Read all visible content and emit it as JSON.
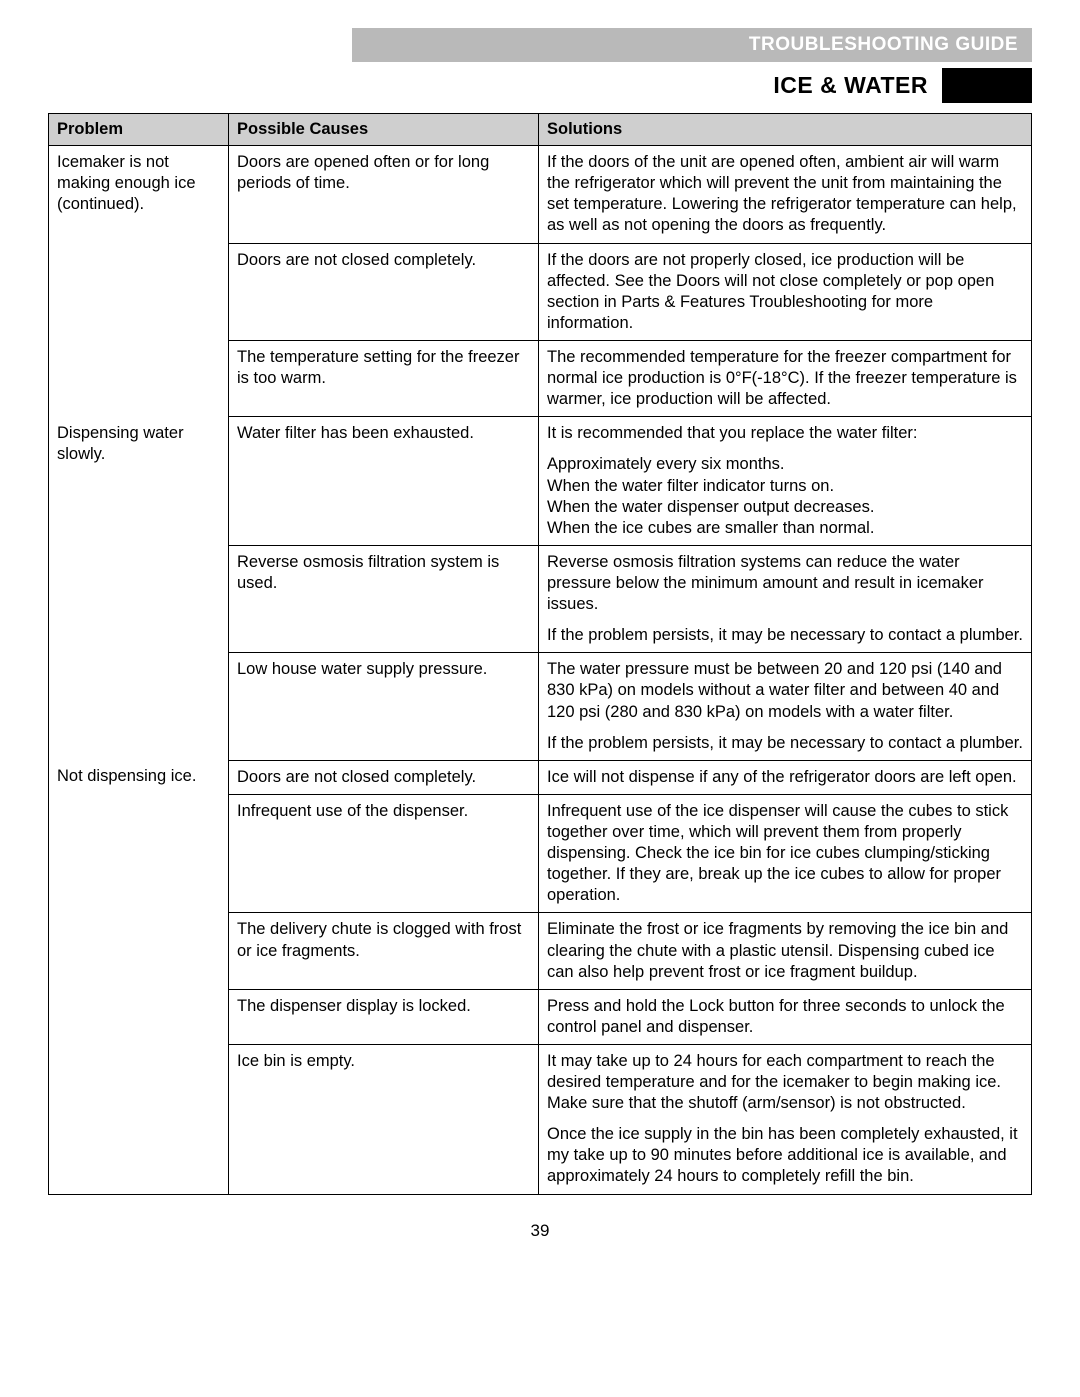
{
  "header": {
    "band": "TROUBLESHOOTING GUIDE",
    "section": "ICE & WATER"
  },
  "columns": {
    "problem": "Problem",
    "causes": "Possible Causes",
    "solutions": "Solutions"
  },
  "groups": [
    {
      "problem": "Icemaker is not making enough ice (continued).",
      "rows": [
        {
          "cause": "Doors are opened often or for long periods of time.",
          "solution": [
            "If the doors of the unit are opened often, ambient air will warm the refrigerator which will prevent the unit from maintaining the set temperature. Lowering the refrigerator temperature can help, as well as not opening the doors as frequently."
          ]
        },
        {
          "cause": "Doors are not closed completely.",
          "solution": [
            "If the doors are not properly closed, ice production will be affected. See the Doors will not close completely or pop open section in Parts & Features Troubleshooting for more information."
          ]
        },
        {
          "cause": "The temperature setting for the freezer is too warm.",
          "solution": [
            "The recommended temperature for the freezer compartment for normal ice production is 0°F(-18°C). If the freezer temperature is warmer, ice production will be affected."
          ]
        }
      ]
    },
    {
      "problem": "Dispensing water slowly.",
      "rows": [
        {
          "cause": "Water filter has been exhausted.",
          "solution": [
            "It is recommended that you replace the water filter:",
            "Approximately every six months.\nWhen the water filter indicator turns on.\nWhen the water dispenser output decreases.\nWhen the ice cubes are smaller than normal."
          ]
        },
        {
          "cause": "Reverse osmosis filtration system is used.",
          "solution": [
            "Reverse osmosis filtration systems can reduce the water pressure below the minimum amount and result in icemaker issues.",
            "If the problem persists, it may be necessary to contact a plumber."
          ]
        },
        {
          "cause": "Low house water supply pressure.",
          "solution": [
            "The water pressure must be between 20 and 120 psi (140 and 830 kPa) on models without a water filter and between 40 and 120 psi (280 and 830 kPa) on models with a water filter.",
            "If the problem persists, it may be necessary to contact a plumber."
          ]
        }
      ]
    },
    {
      "problem": "Not dispensing ice.",
      "rows": [
        {
          "cause": "Doors are not closed completely.",
          "solution": [
            "Ice will not dispense if any of the refrigerator doors are left open."
          ]
        },
        {
          "cause": "Infrequent use of the dispenser.",
          "solution": [
            "Infrequent use of the ice dispenser will cause the cubes to stick together over time, which will prevent them from properly dispensing. Check the ice bin for ice cubes clumping/sticking together. If they are, break up the ice cubes to allow for proper operation."
          ]
        },
        {
          "cause": "The delivery chute is clogged with frost or ice fragments.",
          "solution": [
            "Eliminate the frost or ice fragments by removing the ice bin and clearing the chute with a plastic utensil. Dispensing cubed ice can also help prevent frost or ice fragment buildup."
          ]
        },
        {
          "cause": "The dispenser display is locked.",
          "solution": [
            "Press and hold the Lock button for three seconds to unlock the control panel and dispenser."
          ]
        },
        {
          "cause": "Ice bin is empty.",
          "solution": [
            "It may take up to 24 hours for each compartment to reach the desired temperature and for the icemaker to begin making ice. Make sure that the shutoff (arm/sensor) is not obstructed.",
            "Once the ice supply in the bin has been completely exhausted, it my take up to 90 minutes before additional ice is available,  and approximately 24 hours to completely refill the bin."
          ]
        }
      ]
    }
  ],
  "page_number": "39"
}
